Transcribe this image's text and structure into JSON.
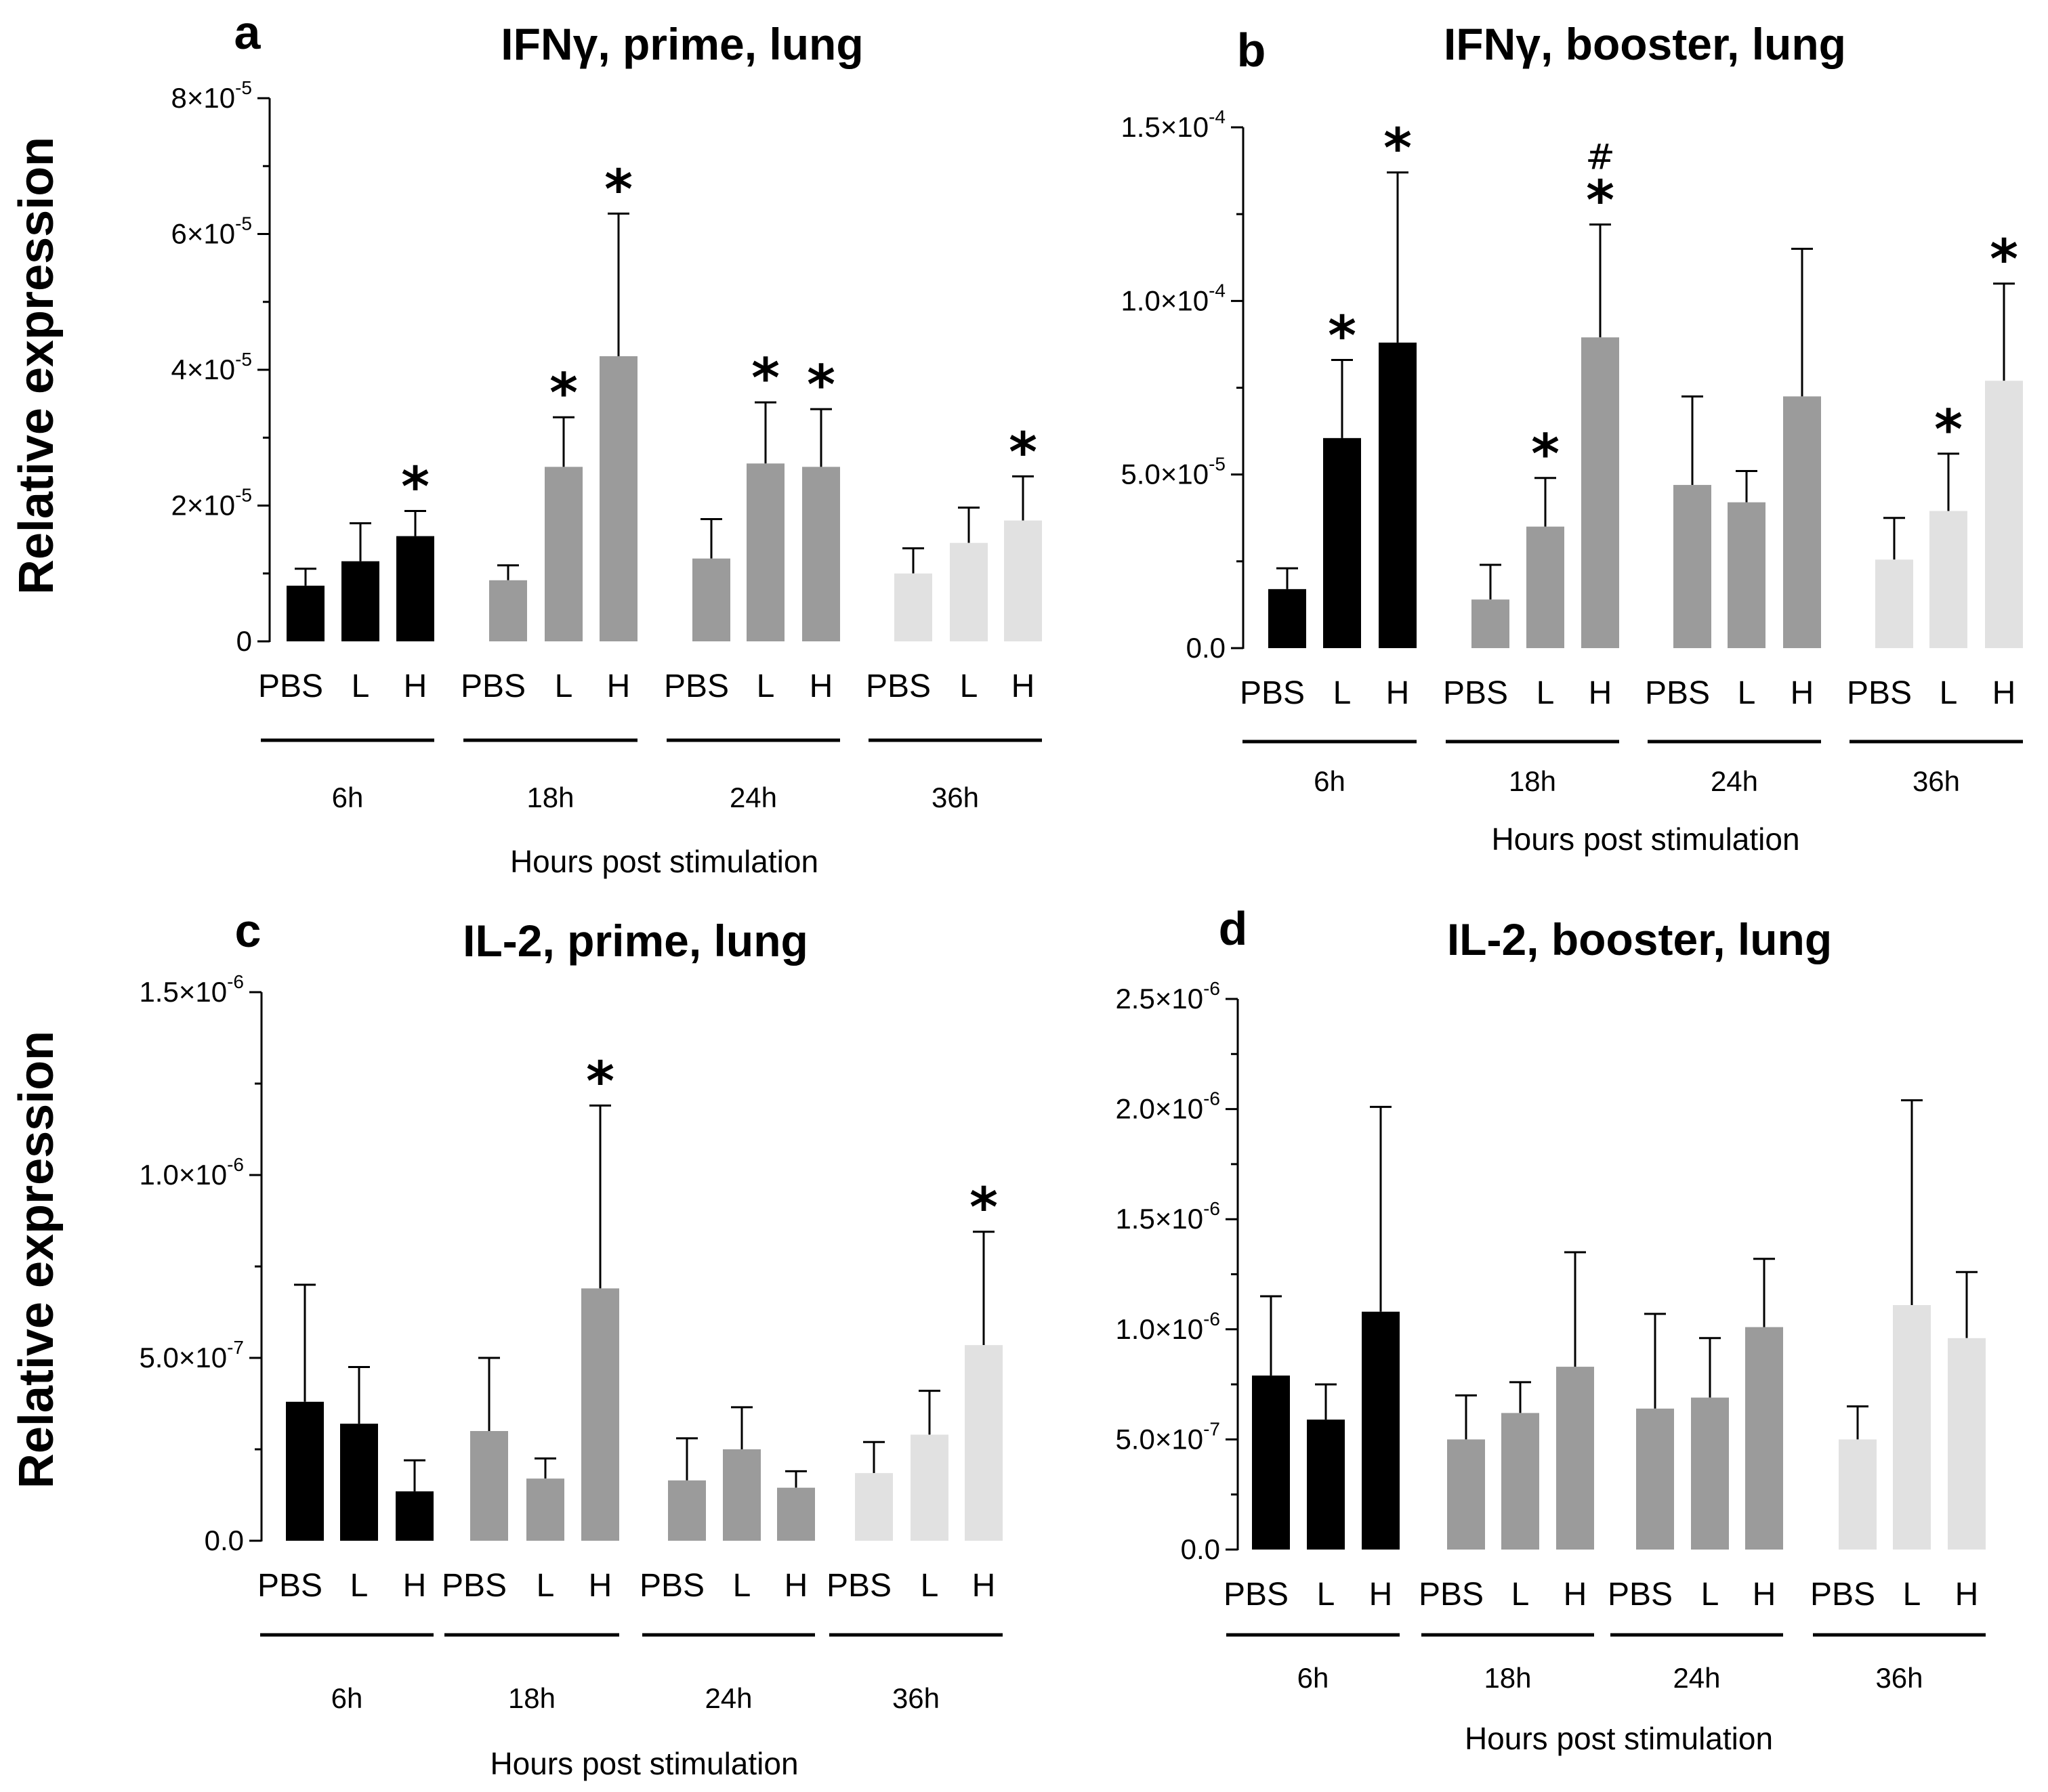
{
  "figure": {
    "colors": {
      "6h": "#000000",
      "18h": "#9b9b9b",
      "24h": "#9b9b9b",
      "36h": "#e1e1e1"
    }
  },
  "chart_data": [
    {
      "id": "a",
      "type": "bar",
      "letter": "a",
      "title": "IFNγ, prime, lung",
      "ylabel": "Relative expression",
      "xlabel": "Hours post stimulation",
      "ylim": [
        0,
        8e-05
      ],
      "yticks": [
        {
          "value": 0,
          "mant": "0",
          "exp": ""
        },
        {
          "value": 2e-05,
          "mant": "2×10",
          "exp": "-5"
        },
        {
          "value": 4e-05,
          "mant": "4×10",
          "exp": "-5"
        },
        {
          "value": 6e-05,
          "mant": "6×10",
          "exp": "-5"
        },
        {
          "value": 8e-05,
          "mant": "8×10",
          "exp": "-5"
        }
      ],
      "groups": [
        {
          "name": "6h",
          "bars": [
            {
              "label": "PBS",
              "value": 8.2e-06,
              "err": 2.5e-06,
              "mark": ""
            },
            {
              "label": "L",
              "value": 1.18e-05,
              "err": 5.6e-06,
              "mark": ""
            },
            {
              "label": "H",
              "value": 1.55e-05,
              "err": 3.7e-06,
              "mark": "*"
            }
          ]
        },
        {
          "name": "18h",
          "bars": [
            {
              "label": "PBS",
              "value": 9e-06,
              "err": 2.2e-06,
              "mark": ""
            },
            {
              "label": "L",
              "value": 2.57e-05,
              "err": 7.3e-06,
              "mark": "*"
            },
            {
              "label": "H",
              "value": 4.2e-05,
              "err": 2.1e-05,
              "mark": "*"
            }
          ]
        },
        {
          "name": "24h",
          "bars": [
            {
              "label": "PBS",
              "value": 1.22e-05,
              "err": 5.8e-06,
              "mark": ""
            },
            {
              "label": "L",
              "value": 2.62e-05,
              "err": 9e-06,
              "mark": "*"
            },
            {
              "label": "H",
              "value": 2.57e-05,
              "err": 8.5e-06,
              "mark": "*"
            }
          ]
        },
        {
          "name": "36h",
          "bars": [
            {
              "label": "PBS",
              "value": 1e-05,
              "err": 3.7e-06,
              "mark": ""
            },
            {
              "label": "L",
              "value": 1.45e-05,
              "err": 5.2e-06,
              "mark": ""
            },
            {
              "label": "H",
              "value": 1.78e-05,
              "err": 6.5e-06,
              "mark": "*"
            }
          ]
        }
      ]
    },
    {
      "id": "b",
      "type": "bar",
      "letter": "b",
      "title": "IFNγ, booster, lung",
      "ylabel": "",
      "xlabel": "Hours post stimulation",
      "ylim": [
        0,
        0.00015
      ],
      "yticks": [
        {
          "value": 0,
          "mant": "0.0",
          "exp": ""
        },
        {
          "value": 5e-05,
          "mant": "5.0×10",
          "exp": "-5"
        },
        {
          "value": 0.0001,
          "mant": "1.0×10",
          "exp": "-4"
        },
        {
          "value": 0.00015,
          "mant": "1.5×10",
          "exp": "-4"
        }
      ],
      "groups": [
        {
          "name": "6h",
          "bars": [
            {
              "label": "PBS",
              "value": 1.7e-05,
              "err": 6e-06,
              "mark": ""
            },
            {
              "label": "L",
              "value": 6.05e-05,
              "err": 2.25e-05,
              "mark": "*"
            },
            {
              "label": "H",
              "value": 8.8e-05,
              "err": 4.9e-05,
              "mark": "*"
            }
          ]
        },
        {
          "name": "18h",
          "bars": [
            {
              "label": "PBS",
              "value": 1.4e-05,
              "err": 1e-05,
              "mark": ""
            },
            {
              "label": "L",
              "value": 3.5e-05,
              "err": 1.4e-05,
              "mark": "*"
            },
            {
              "label": "H",
              "value": 8.95e-05,
              "err": 3.25e-05,
              "mark": "#\n*"
            }
          ]
        },
        {
          "name": "24h",
          "bars": [
            {
              "label": "PBS",
              "value": 4.7e-05,
              "err": 2.55e-05,
              "mark": ""
            },
            {
              "label": "L",
              "value": 4.2e-05,
              "err": 9e-06,
              "mark": ""
            },
            {
              "label": "H",
              "value": 7.25e-05,
              "err": 4.25e-05,
              "mark": ""
            }
          ]
        },
        {
          "name": "36h",
          "bars": [
            {
              "label": "PBS",
              "value": 2.55e-05,
              "err": 1.2e-05,
              "mark": ""
            },
            {
              "label": "L",
              "value": 3.95e-05,
              "err": 1.65e-05,
              "mark": "*"
            },
            {
              "label": "H",
              "value": 7.7e-05,
              "err": 2.8e-05,
              "mark": "*"
            }
          ]
        }
      ]
    },
    {
      "id": "c",
      "type": "bar",
      "letter": "c",
      "title": "IL-2, prime, lung",
      "ylabel": "Relative expression",
      "xlabel": "Hours post stimulation",
      "ylim": [
        0,
        1.5e-06
      ],
      "yticks": [
        {
          "value": 0,
          "mant": "0.0",
          "exp": ""
        },
        {
          "value": 5e-07,
          "mant": "5.0×10",
          "exp": "-7"
        },
        {
          "value": 1e-06,
          "mant": "1.0×10",
          "exp": "-6"
        },
        {
          "value": 1.5e-06,
          "mant": "1.5×10",
          "exp": "-6"
        }
      ],
      "groups": [
        {
          "name": "6h",
          "bars": [
            {
              "label": "PBS",
              "value": 3.8e-07,
              "err": 3.2e-07,
              "mark": ""
            },
            {
              "label": "L",
              "value": 3.2e-07,
              "err": 1.55e-07,
              "mark": ""
            },
            {
              "label": "H",
              "value": 1.35e-07,
              "err": 8.5e-08,
              "mark": ""
            }
          ]
        },
        {
          "name": "18h",
          "bars": [
            {
              "label": "PBS",
              "value": 3e-07,
              "err": 2e-07,
              "mark": ""
            },
            {
              "label": "L",
              "value": 1.7e-07,
              "err": 5.5e-08,
              "mark": ""
            },
            {
              "label": "H",
              "value": 6.9e-07,
              "err": 5e-07,
              "mark": "*"
            }
          ]
        },
        {
          "name": "24h",
          "bars": [
            {
              "label": "PBS",
              "value": 1.65e-07,
              "err": 1.15e-07,
              "mark": ""
            },
            {
              "label": "L",
              "value": 2.5e-07,
              "err": 1.15e-07,
              "mark": ""
            },
            {
              "label": "H",
              "value": 1.45e-07,
              "err": 4.5e-08,
              "mark": ""
            }
          ]
        },
        {
          "name": "36h",
          "bars": [
            {
              "label": "PBS",
              "value": 1.85e-07,
              "err": 8.5e-08,
              "mark": ""
            },
            {
              "label": "L",
              "value": 2.9e-07,
              "err": 1.2e-07,
              "mark": ""
            },
            {
              "label": "H",
              "value": 5.35e-07,
              "err": 3.1e-07,
              "mark": "*"
            }
          ]
        }
      ]
    },
    {
      "id": "d",
      "type": "bar",
      "letter": "d",
      "title": "IL-2, booster, lung",
      "ylabel": "",
      "xlabel": "Hours post stimulation",
      "ylim": [
        0,
        2.5e-06
      ],
      "yticks": [
        {
          "value": 0,
          "mant": "0.0",
          "exp": ""
        },
        {
          "value": 5e-07,
          "mant": "5.0×10",
          "exp": "-7"
        },
        {
          "value": 1e-06,
          "mant": "1.0×10",
          "exp": "-6"
        },
        {
          "value": 1.5e-06,
          "mant": "1.5×10",
          "exp": "-6"
        },
        {
          "value": 2e-06,
          "mant": "2.0×10",
          "exp": "-6"
        },
        {
          "value": 2.5e-06,
          "mant": "2.5×10",
          "exp": "-6"
        }
      ],
      "groups": [
        {
          "name": "6h",
          "bars": [
            {
              "label": "PBS",
              "value": 7.9e-07,
              "err": 3.6e-07,
              "mark": ""
            },
            {
              "label": "L",
              "value": 5.9e-07,
              "err": 1.6e-07,
              "mark": ""
            },
            {
              "label": "H",
              "value": 1.08e-06,
              "err": 9.3e-07,
              "mark": ""
            }
          ]
        },
        {
          "name": "18h",
          "bars": [
            {
              "label": "PBS",
              "value": 5e-07,
              "err": 2e-07,
              "mark": ""
            },
            {
              "label": "L",
              "value": 6.2e-07,
              "err": 1.4e-07,
              "mark": ""
            },
            {
              "label": "H",
              "value": 8.3e-07,
              "err": 5.2e-07,
              "mark": ""
            }
          ]
        },
        {
          "name": "24h",
          "bars": [
            {
              "label": "PBS",
              "value": 6.4e-07,
              "err": 4.3e-07,
              "mark": ""
            },
            {
              "label": "L",
              "value": 6.9e-07,
              "err": 2.7e-07,
              "mark": ""
            },
            {
              "label": "H",
              "value": 1.01e-06,
              "err": 3.1e-07,
              "mark": ""
            }
          ]
        },
        {
          "name": "36h",
          "bars": [
            {
              "label": "PBS",
              "value": 5e-07,
              "err": 1.5e-07,
              "mark": ""
            },
            {
              "label": "L",
              "value": 1.11e-06,
              "err": 9.3e-07,
              "mark": ""
            },
            {
              "label": "H",
              "value": 9.6e-07,
              "err": 3e-07,
              "mark": ""
            }
          ]
        }
      ]
    }
  ]
}
